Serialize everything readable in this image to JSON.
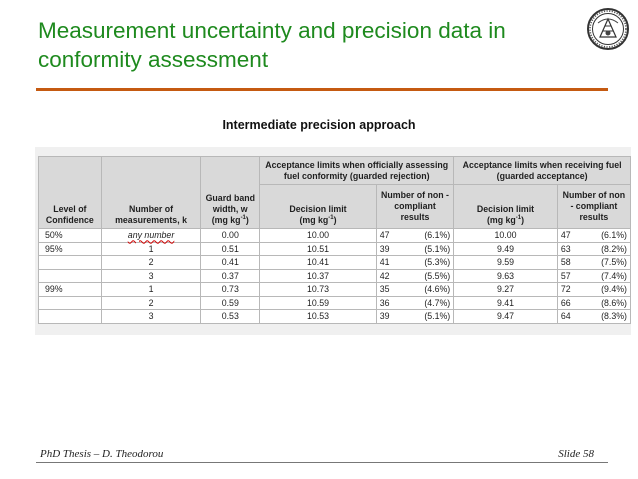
{
  "slide": {
    "title": "Measurement uncertainty and precision data in conformity assessment",
    "subtitle": "Intermediate precision approach",
    "footer_left": "PhD Thesis – D. Theodorou",
    "footer_right": "Slide 58",
    "colors": {
      "title": "#1e8a1e",
      "rule": "#c55a11",
      "header_fill": "#d9d9d9"
    },
    "logo": "university-seal-icon"
  },
  "table": {
    "header": {
      "level": "Level of Confidence",
      "nmeas": "Number of measurements, k",
      "guard_line1": "Guard band",
      "guard_line2": "width, w",
      "guard_unit": "(mg kg",
      "guard_sup": "-1",
      "guard_close": ")",
      "rej_group": "Acceptance limits when officially assessing fuel conformity (guarded rejection)",
      "acc_group": "Acceptance limits when receiving fuel (guarded acceptance)",
      "dl": "Decision limit",
      "dl_unit": "(mg kg",
      "dl_sup": "-1",
      "dl_close": ")",
      "noncomp": "Number of non - compliant results"
    },
    "rows": [
      {
        "level": "50%",
        "k": "any number",
        "w": "0.00",
        "dl_rej": "10.00",
        "n_rej": "47",
        "p_rej": "(6.1%)",
        "dl_acc": "10.00",
        "n_acc": "47",
        "p_acc": "(6.1%)"
      },
      {
        "level": "95%",
        "k": "1",
        "w": "0.51",
        "dl_rej": "10.51",
        "n_rej": "39",
        "p_rej": "(5.1%)",
        "dl_acc": "9.49",
        "n_acc": "63",
        "p_acc": "(8.2%)"
      },
      {
        "level": "",
        "k": "2",
        "w": "0.41",
        "dl_rej": "10.41",
        "n_rej": "41",
        "p_rej": "(5.3%)",
        "dl_acc": "9.59",
        "n_acc": "58",
        "p_acc": "(7.5%)"
      },
      {
        "level": "",
        "k": "3",
        "w": "0.37",
        "dl_rej": "10.37",
        "n_rej": "42",
        "p_rej": "(5.5%)",
        "dl_acc": "9.63",
        "n_acc": "57",
        "p_acc": "(7.4%)"
      },
      {
        "level": "99%",
        "k": "1",
        "w": "0.73",
        "dl_rej": "10.73",
        "n_rej": "35",
        "p_rej": "(4.6%)",
        "dl_acc": "9.27",
        "n_acc": "72",
        "p_acc": "(9.4%)"
      },
      {
        "level": "",
        "k": "2",
        "w": "0.59",
        "dl_rej": "10.59",
        "n_rej": "36",
        "p_rej": "(4.7%)",
        "dl_acc": "9.41",
        "n_acc": "66",
        "p_acc": "(8.6%)"
      },
      {
        "level": "",
        "k": "3",
        "w": "0.53",
        "dl_rej": "10.53",
        "n_rej": "39",
        "p_rej": "(5.1%)",
        "dl_acc": "9.47",
        "n_acc": "64",
        "p_acc": "(8.3%)"
      }
    ]
  }
}
